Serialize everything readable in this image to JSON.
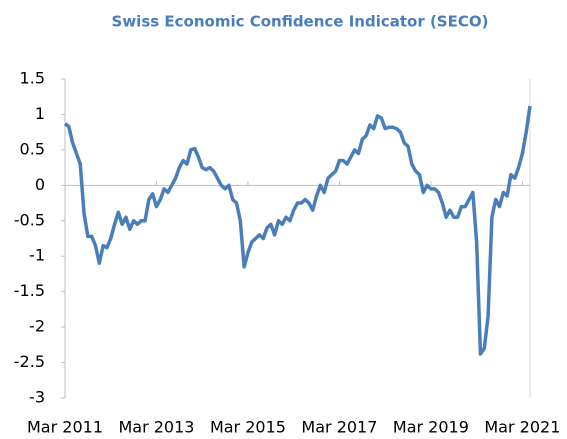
{
  "chart_data": {
    "type": "line",
    "title": "Swiss Economic Confidence Indicator (SECO)",
    "x": [
      "2011-03",
      "2011-04",
      "2011-05",
      "2011-06",
      "2011-07",
      "2011-08",
      "2011-09",
      "2011-10",
      "2011-11",
      "2011-12",
      "2012-01",
      "2012-02",
      "2012-03",
      "2012-04",
      "2012-05",
      "2012-06",
      "2012-07",
      "2012-08",
      "2012-09",
      "2012-10",
      "2012-11",
      "2012-12",
      "2013-01",
      "2013-02",
      "2013-03",
      "2013-04",
      "2013-05",
      "2013-06",
      "2013-07",
      "2013-08",
      "2013-09",
      "2013-10",
      "2013-11",
      "2013-12",
      "2014-01",
      "2014-02",
      "2014-03",
      "2014-04",
      "2014-05",
      "2014-06",
      "2014-07",
      "2014-08",
      "2014-09",
      "2014-10",
      "2014-11",
      "2014-12",
      "2015-01",
      "2015-02",
      "2015-03",
      "2015-04",
      "2015-05",
      "2015-06",
      "2015-07",
      "2015-08",
      "2015-09",
      "2015-10",
      "2015-11",
      "2015-12",
      "2016-01",
      "2016-02",
      "2016-03",
      "2016-04",
      "2016-05",
      "2016-06",
      "2016-07",
      "2016-08",
      "2016-09",
      "2016-10",
      "2016-11",
      "2016-12",
      "2017-01",
      "2017-02",
      "2017-03",
      "2017-04",
      "2017-05",
      "2017-06",
      "2017-07",
      "2017-08",
      "2017-09",
      "2017-10",
      "2017-11",
      "2017-12",
      "2018-01",
      "2018-02",
      "2018-03",
      "2018-04",
      "2018-05",
      "2018-06",
      "2018-07",
      "2018-08",
      "2018-09",
      "2018-10",
      "2018-11",
      "2018-12",
      "2019-01",
      "2019-02",
      "2019-03",
      "2019-04",
      "2019-05",
      "2019-06",
      "2019-07",
      "2019-08",
      "2019-09",
      "2019-10",
      "2019-11",
      "2019-12",
      "2020-01",
      "2020-02",
      "2020-03",
      "2020-04",
      "2020-05",
      "2020-06",
      "2020-07",
      "2020-08",
      "2020-09",
      "2020-10",
      "2020-11",
      "2020-12",
      "2021-01",
      "2021-02",
      "2021-03",
      "2021-04",
      "2021-05"
    ],
    "series": [
      {
        "color": "#4a7ebb",
        "values": [
          0.87,
          0.83,
          0.6,
          0.45,
          0.3,
          -0.4,
          -0.72,
          -0.72,
          -0.85,
          -1.1,
          -0.85,
          -0.88,
          -0.75,
          -0.55,
          -0.38,
          -0.55,
          -0.45,
          -0.62,
          -0.5,
          -0.55,
          -0.5,
          -0.5,
          -0.2,
          -0.12,
          -0.3,
          -0.2,
          -0.05,
          -0.1,
          0.0,
          0.1,
          0.25,
          0.35,
          0.3,
          0.5,
          0.52,
          0.4,
          0.25,
          0.22,
          0.25,
          0.2,
          0.1,
          0.0,
          -0.05,
          0.0,
          -0.2,
          -0.25,
          -0.5,
          -1.15,
          -0.95,
          -0.8,
          -0.75,
          -0.7,
          -0.75,
          -0.6,
          -0.55,
          -0.7,
          -0.5,
          -0.55,
          -0.45,
          -0.5,
          -0.35,
          -0.25,
          -0.25,
          -0.2,
          -0.25,
          -0.35,
          -0.15,
          0.0,
          -0.1,
          0.1,
          0.15,
          0.2,
          0.35,
          0.35,
          0.3,
          0.4,
          0.5,
          0.45,
          0.65,
          0.7,
          0.85,
          0.8,
          0.98,
          0.95,
          0.8,
          0.82,
          0.82,
          0.8,
          0.75,
          0.6,
          0.55,
          0.3,
          0.2,
          0.15,
          -0.1,
          0.0,
          -0.05,
          -0.05,
          -0.1,
          -0.25,
          -0.45,
          -0.35,
          -0.45,
          -0.45,
          -0.3,
          -0.3,
          -0.2,
          -0.1,
          -0.8,
          -2.38,
          -2.3,
          -1.85,
          -0.45,
          -0.2,
          -0.3,
          -0.1,
          -0.15,
          0.15,
          0.1,
          0.25,
          0.45,
          0.75,
          1.12
        ]
      }
    ],
    "xlim": [
      "2011-03",
      "2021-05"
    ],
    "xticks": [
      {
        "value": "2011-03",
        "label": "Mar 2011"
      },
      {
        "value": "2013-03",
        "label": "Mar 2013"
      },
      {
        "value": "2015-03",
        "label": "Mar 2015"
      },
      {
        "value": "2017-03",
        "label": "Mar 2017"
      },
      {
        "value": "2019-03",
        "label": "Mar 2019"
      },
      {
        "value": "2021-03",
        "label": "Mar 2021"
      }
    ],
    "ylim": [
      -3,
      1.5
    ],
    "yticks": [
      1.5,
      1,
      0.5,
      0,
      -0.5,
      -1,
      -1.5,
      -2,
      -2.5,
      -3
    ]
  }
}
